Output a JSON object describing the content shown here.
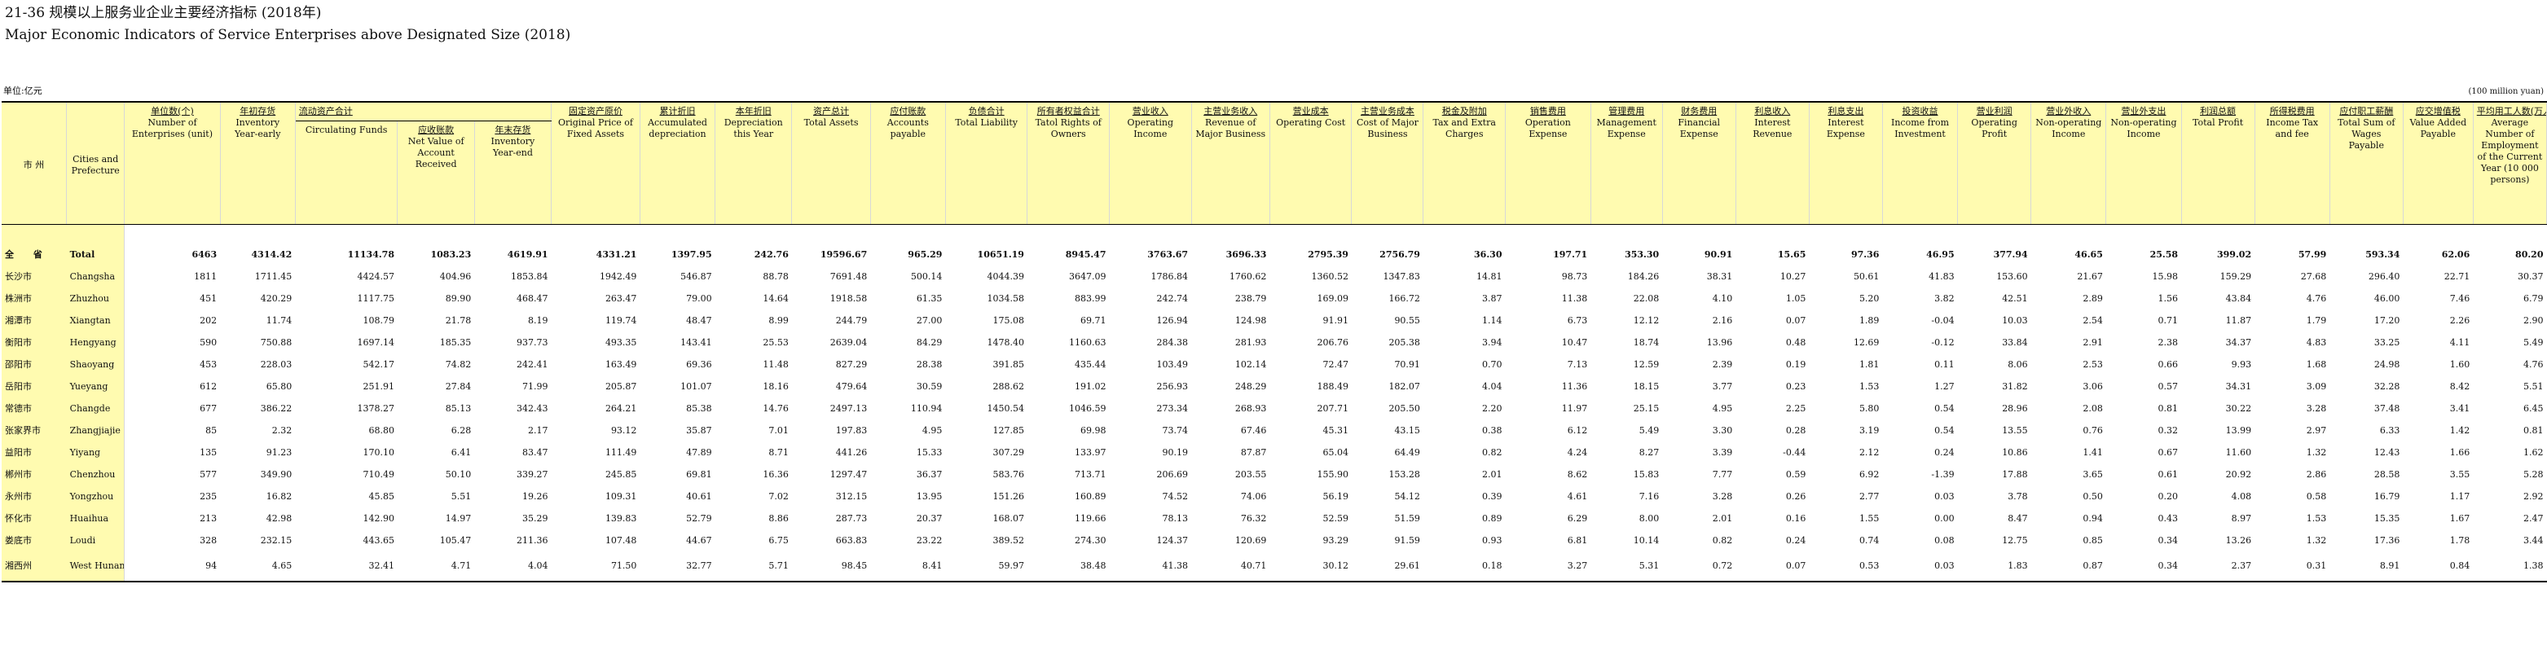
{
  "title_zh": "21-36   规模以上服务业企业主要经济指标 (2018年)",
  "title_en": "Major Economic Indicators of Service Enterprises above  Designated Size (2018)",
  "unit_left": "单位:亿元",
  "unit_right": "(100 million yuan)",
  "city_header": {
    "zh": "市  州",
    "en": "Cities and Prefecture"
  },
  "group_header": {
    "zh": "流动资产合计",
    "en": "Circulating Funds"
  },
  "columns": [
    {
      "zh": "单位数(个)",
      "en": "Number of Enterprises (unit)"
    },
    {
      "zh": "年初存货",
      "en": "Inventory Year-early"
    },
    {
      "zh": "流动资产合计",
      "en": "Circulating Funds"
    },
    {
      "zh": "应收账款",
      "en": "Net Value of Account Received"
    },
    {
      "zh": "年末存货",
      "en": "Inventory Year-end"
    },
    {
      "zh": "固定资产原价",
      "en": "Original Price of Fixed Assets"
    },
    {
      "zh": "累计折旧",
      "en": "Accumulated depreciation"
    },
    {
      "zh": "本年折旧",
      "en": "Depreciation this Year"
    },
    {
      "zh": "资产总计",
      "en": "Total Assets"
    },
    {
      "zh": "应付账款",
      "en": "Accounts payable"
    },
    {
      "zh": "负债合计",
      "en": "Total Liability"
    },
    {
      "zh": "所有者权益合计",
      "en": "Tatol Rights of Owners"
    },
    {
      "zh": "营业收入",
      "en": "Operating Income"
    },
    {
      "zh": "主营业务收入",
      "en": "Revenue of Major Business"
    },
    {
      "zh": "营业成本",
      "en": "Operating Cost"
    },
    {
      "zh": "主营业务成本",
      "en": "Cost of Major Business"
    },
    {
      "zh": "税金及附加",
      "en": "Tax and Extra Charges"
    },
    {
      "zh": "销售费用",
      "en": "Operation Expense"
    },
    {
      "zh": "管理费用",
      "en": "Management Expense"
    },
    {
      "zh": "财务费用",
      "en": "Financial Expense"
    },
    {
      "zh": "利息收入",
      "en": "Interest Revenue"
    },
    {
      "zh": "利息支出",
      "en": "Interest Expense"
    },
    {
      "zh": "投资收益",
      "en": "Income from Investment"
    },
    {
      "zh": "营业利润",
      "en": "Operating Profit"
    },
    {
      "zh": "营业外收入",
      "en": "Non-operating Income"
    },
    {
      "zh": "营业外支出",
      "en": "Non-operating Income"
    },
    {
      "zh": "利润总额",
      "en": "Total Profit"
    },
    {
      "zh": "所得税费用",
      "en": "Income Tax and fee"
    },
    {
      "zh": "应付职工薪酬",
      "en": "Total Sum of Wages Payable"
    },
    {
      "zh": "应交增值税",
      "en": "Value Added Payable"
    },
    {
      "zh": "平均用工人数(万人)",
      "en": "Average Number of Employment of the Current Year (10 000 persons)"
    }
  ],
  "rows": [
    {
      "zh": "全  省",
      "en": "Total",
      "values": [
        "6463",
        "4314.42",
        "11134.78",
        "1083.23",
        "4619.91",
        "4331.21",
        "1397.95",
        "242.76",
        "19596.67",
        "965.29",
        "10651.19",
        "8945.47",
        "3763.67",
        "3696.33",
        "2795.39",
        "2756.79",
        "36.30",
        "197.71",
        "353.30",
        "90.91",
        "15.65",
        "97.36",
        "46.95",
        "377.94",
        "46.65",
        "25.58",
        "399.02",
        "57.99",
        "593.34",
        "62.06",
        "80.20"
      ]
    },
    {
      "zh": "长沙市",
      "en": "Changsha",
      "values": [
        "1811",
        "1711.45",
        "4424.57",
        "404.96",
        "1853.84",
        "1942.49",
        "546.87",
        "88.78",
        "7691.48",
        "500.14",
        "4044.39",
        "3647.09",
        "1786.84",
        "1760.62",
        "1360.52",
        "1347.83",
        "14.81",
        "98.73",
        "184.26",
        "38.31",
        "10.27",
        "50.61",
        "41.83",
        "153.60",
        "21.67",
        "15.98",
        "159.29",
        "27.68",
        "296.40",
        "22.71",
        "30.37"
      ]
    },
    {
      "zh": "株洲市",
      "en": "Zhuzhou",
      "values": [
        "451",
        "420.29",
        "1117.75",
        "89.90",
        "468.47",
        "263.47",
        "79.00",
        "14.64",
        "1918.58",
        "61.35",
        "1034.58",
        "883.99",
        "242.74",
        "238.79",
        "169.09",
        "166.72",
        "3.87",
        "11.38",
        "22.08",
        "4.10",
        "1.05",
        "5.20",
        "3.82",
        "42.51",
        "2.89",
        "1.56",
        "43.84",
        "4.76",
        "46.00",
        "7.46",
        "6.79"
      ]
    },
    {
      "zh": "湘潭市",
      "en": "Xiangtan",
      "values": [
        "202",
        "11.74",
        "108.79",
        "21.78",
        "8.19",
        "119.74",
        "48.47",
        "8.99",
        "244.79",
        "27.00",
        "175.08",
        "69.71",
        "126.94",
        "124.98",
        "91.91",
        "90.55",
        "1.14",
        "6.73",
        "12.12",
        "2.16",
        "0.07",
        "1.89",
        "-0.04",
        "10.03",
        "2.54",
        "0.71",
        "11.87",
        "1.79",
        "17.20",
        "2.26",
        "2.90"
      ]
    },
    {
      "zh": "衡阳市",
      "en": "Hengyang",
      "values": [
        "590",
        "750.88",
        "1697.14",
        "185.35",
        "937.73",
        "493.35",
        "143.41",
        "25.53",
        "2639.04",
        "84.29",
        "1478.40",
        "1160.63",
        "284.38",
        "281.93",
        "206.76",
        "205.38",
        "3.94",
        "10.47",
        "18.74",
        "13.96",
        "0.48",
        "12.69",
        "-0.12",
        "33.84",
        "2.91",
        "2.38",
        "34.37",
        "4.83",
        "33.25",
        "4.11",
        "5.49"
      ]
    },
    {
      "zh": "邵阳市",
      "en": "Shaoyang",
      "values": [
        "453",
        "228.03",
        "542.17",
        "74.82",
        "242.41",
        "163.49",
        "69.36",
        "11.48",
        "827.29",
        "28.38",
        "391.85",
        "435.44",
        "103.49",
        "102.14",
        "72.47",
        "70.91",
        "0.70",
        "7.13",
        "12.59",
        "2.39",
        "0.19",
        "1.81",
        "0.11",
        "8.06",
        "2.53",
        "0.66",
        "9.93",
        "1.68",
        "24.98",
        "1.60",
        "4.76"
      ]
    },
    {
      "zh": "岳阳市",
      "en": "Yueyang",
      "values": [
        "612",
        "65.80",
        "251.91",
        "27.84",
        "71.99",
        "205.87",
        "101.07",
        "18.16",
        "479.64",
        "30.59",
        "288.62",
        "191.02",
        "256.93",
        "248.29",
        "188.49",
        "182.07",
        "4.04",
        "11.36",
        "18.15",
        "3.77",
        "0.23",
        "1.53",
        "1.27",
        "31.82",
        "3.06",
        "0.57",
        "34.31",
        "3.09",
        "32.28",
        "8.42",
        "5.51"
      ]
    },
    {
      "zh": "常德市",
      "en": "Changde",
      "values": [
        "677",
        "386.22",
        "1378.27",
        "85.13",
        "342.43",
        "264.21",
        "85.38",
        "14.76",
        "2497.13",
        "110.94",
        "1450.54",
        "1046.59",
        "273.34",
        "268.93",
        "207.71",
        "205.50",
        "2.20",
        "11.97",
        "25.15",
        "4.95",
        "2.25",
        "5.80",
        "0.54",
        "28.96",
        "2.08",
        "0.81",
        "30.22",
        "3.28",
        "37.48",
        "3.41",
        "6.45"
      ]
    },
    {
      "zh": "张家界市",
      "en": "Zhangjiajie",
      "values": [
        "85",
        "2.32",
        "68.80",
        "6.28",
        "2.17",
        "93.12",
        "35.87",
        "7.01",
        "197.83",
        "4.95",
        "127.85",
        "69.98",
        "73.74",
        "67.46",
        "45.31",
        "43.15",
        "0.38",
        "6.12",
        "5.49",
        "3.30",
        "0.28",
        "3.19",
        "0.54",
        "13.55",
        "0.76",
        "0.32",
        "13.99",
        "2.97",
        "6.33",
        "1.42",
        "0.81"
      ]
    },
    {
      "zh": "益阳市",
      "en": "Yiyang",
      "values": [
        "135",
        "91.23",
        "170.10",
        "6.41",
        "83.47",
        "111.49",
        "47.89",
        "8.71",
        "441.26",
        "15.33",
        "307.29",
        "133.97",
        "90.19",
        "87.87",
        "65.04",
        "64.49",
        "0.82",
        "4.24",
        "8.27",
        "3.39",
        "-0.44",
        "2.12",
        "0.24",
        "10.86",
        "1.41",
        "0.67",
        "11.60",
        "1.32",
        "12.43",
        "1.66",
        "1.62"
      ]
    },
    {
      "zh": "郴州市",
      "en": "Chenzhou",
      "values": [
        "577",
        "349.90",
        "710.49",
        "50.10",
        "339.27",
        "245.85",
        "69.81",
        "16.36",
        "1297.47",
        "36.37",
        "583.76",
        "713.71",
        "206.69",
        "203.55",
        "155.90",
        "153.28",
        "2.01",
        "8.62",
        "15.83",
        "7.77",
        "0.59",
        "6.92",
        "-1.39",
        "17.88",
        "3.65",
        "0.61",
        "20.92",
        "2.86",
        "28.58",
        "3.55",
        "5.28"
      ]
    },
    {
      "zh": "永州市",
      "en": "Yongzhou",
      "values": [
        "235",
        "16.82",
        "45.85",
        "5.51",
        "19.26",
        "109.31",
        "40.61",
        "7.02",
        "312.15",
        "13.95",
        "151.26",
        "160.89",
        "74.52",
        "74.06",
        "56.19",
        "54.12",
        "0.39",
        "4.61",
        "7.16",
        "3.28",
        "0.26",
        "2.77",
        "0.03",
        "3.78",
        "0.50",
        "0.20",
        "4.08",
        "0.58",
        "16.79",
        "1.17",
        "2.92"
      ]
    },
    {
      "zh": "怀化市",
      "en": "Huaihua",
      "values": [
        "213",
        "42.98",
        "142.90",
        "14.97",
        "35.29",
        "139.83",
        "52.79",
        "8.86",
        "287.73",
        "20.37",
        "168.07",
        "119.66",
        "78.13",
        "76.32",
        "52.59",
        "51.59",
        "0.89",
        "6.29",
        "8.00",
        "2.01",
        "0.16",
        "1.55",
        "0.00",
        "8.47",
        "0.94",
        "0.43",
        "8.97",
        "1.53",
        "15.35",
        "1.67",
        "2.47"
      ]
    },
    {
      "zh": "娄底市",
      "en": "Loudi",
      "values": [
        "328",
        "232.15",
        "443.65",
        "105.47",
        "211.36",
        "107.48",
        "44.67",
        "6.75",
        "663.83",
        "23.22",
        "389.52",
        "274.30",
        "124.37",
        "120.69",
        "93.29",
        "91.59",
        "0.93",
        "6.81",
        "10.14",
        "0.82",
        "0.24",
        "0.74",
        "0.08",
        "12.75",
        "0.85",
        "0.34",
        "13.26",
        "1.32",
        "17.36",
        "1.78",
        "3.44"
      ]
    },
    {
      "zh": "湘西州",
      "en": "West Hunan",
      "values": [
        "94",
        "4.65",
        "32.41",
        "4.71",
        "4.04",
        "71.50",
        "32.77",
        "5.71",
        "98.45",
        "8.41",
        "59.97",
        "38.48",
        "41.38",
        "40.71",
        "30.12",
        "29.61",
        "0.18",
        "3.27",
        "5.31",
        "0.72",
        "0.07",
        "0.53",
        "0.03",
        "1.83",
        "0.87",
        "0.34",
        "2.37",
        "0.31",
        "8.91",
        "0.84",
        "1.38"
      ]
    }
  ]
}
